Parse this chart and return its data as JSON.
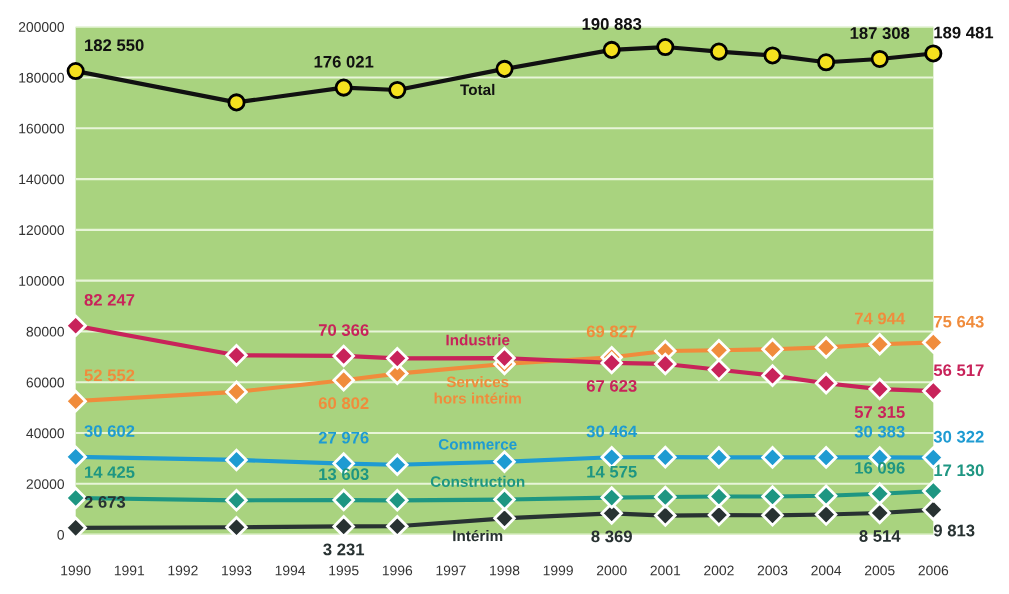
{
  "chart_data": {
    "type": "line",
    "x": [
      1990,
      1993,
      1995,
      1996,
      1998,
      2000,
      2001,
      2002,
      2003,
      2004,
      2005,
      2006
    ],
    "xlim": [
      1990,
      2006
    ],
    "xticks": [
      1990,
      1991,
      1992,
      1993,
      1994,
      1995,
      1996,
      1997,
      1998,
      1999,
      2000,
      2001,
      2002,
      2003,
      2004,
      2005,
      2006
    ],
    "ylim": [
      0,
      200000
    ],
    "yticks": [
      0,
      20000,
      40000,
      60000,
      80000,
      100000,
      120000,
      140000,
      160000,
      180000,
      200000
    ],
    "grid": "y",
    "legend": false,
    "line_style": "solid",
    "series": [
      {
        "name": "Total",
        "color": "#111111",
        "marker": "circle",
        "values": [
          182550,
          170200,
          176021,
          175100,
          183400,
          190883,
          192000,
          190200,
          188700,
          186000,
          187308,
          189481
        ],
        "value_labels": [
          "182 550",
          null,
          "176 021",
          null,
          null,
          "190 883",
          null,
          null,
          null,
          null,
          "187 308",
          "189 481"
        ]
      },
      {
        "name": "Industrie",
        "color": "#c8235a",
        "marker": "diamond",
        "values": [
          82247,
          70600,
          70366,
          69400,
          69500,
          67623,
          67200,
          64900,
          62600,
          59600,
          57315,
          56517
        ],
        "value_labels": [
          "82 247",
          null,
          "70 366",
          null,
          null,
          "67 623",
          null,
          null,
          null,
          null,
          "57 315",
          "56 517"
        ]
      },
      {
        "name": "Services\nhors intérim",
        "color": "#f08c3c",
        "marker": "diamond",
        "values": [
          52552,
          56200,
          60802,
          63400,
          67200,
          69827,
          72300,
          72600,
          73000,
          73700,
          74944,
          75643
        ],
        "value_labels": [
          "52 552",
          null,
          "60 802",
          null,
          null,
          "69 827",
          null,
          null,
          null,
          null,
          "74 944",
          "75 643"
        ]
      },
      {
        "name": "Commerce",
        "color": "#1e9bd2",
        "marker": "diamond",
        "values": [
          30602,
          29400,
          27976,
          27500,
          28700,
          30464,
          30500,
          30400,
          30400,
          30400,
          30383,
          30322
        ],
        "value_labels": [
          "30 602",
          null,
          "27 976",
          null,
          null,
          "30 464",
          null,
          null,
          null,
          null,
          "30 383",
          "30 322"
        ]
      },
      {
        "name": "Construction",
        "color": "#1e9682",
        "marker": "diamond",
        "values": [
          14425,
          13500,
          13603,
          13500,
          13800,
          14575,
          14800,
          15000,
          15000,
          15300,
          16096,
          17130
        ],
        "value_labels": [
          "14 425",
          null,
          "13 603",
          null,
          null,
          "14 575",
          null,
          null,
          null,
          null,
          "16 096",
          "17 130"
        ]
      },
      {
        "name": "Intérim",
        "color": "#283232",
        "marker": "diamond",
        "values": [
          2673,
          2900,
          3231,
          3300,
          6400,
          8369,
          7500,
          7700,
          7600,
          7900,
          8514,
          9813
        ],
        "value_labels": [
          "2 673",
          null,
          "3 231",
          null,
          null,
          "8 369",
          null,
          null,
          null,
          null,
          "8 514",
          "9 813"
        ]
      }
    ]
  }
}
